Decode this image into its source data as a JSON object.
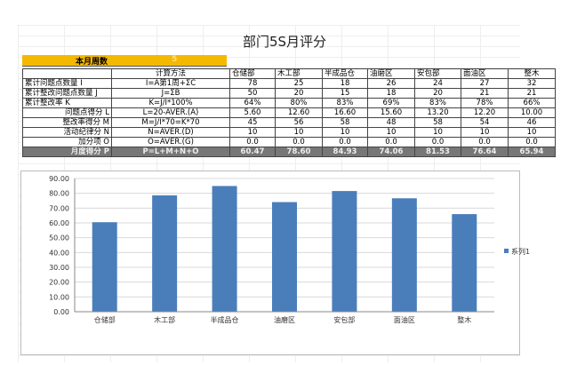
{
  "title": "部门5S月评分",
  "weeks": {
    "label": "本月周数",
    "value": "5"
  },
  "table": {
    "headers": [
      "",
      "计算方法",
      "仓储部",
      "木工部",
      "半成品仓",
      "油磨区",
      "安包部",
      "面油区",
      "整木"
    ],
    "rows": [
      {
        "label": "累计问题点数量 I",
        "method": "I=A第1周+ΣC",
        "values": [
          "78",
          "25",
          "18",
          "26",
          "24",
          "27",
          "32"
        ],
        "align": "l"
      },
      {
        "label": "累计整改问题点数量 J",
        "method": "J=ΣB",
        "values": [
          "50",
          "20",
          "15",
          "18",
          "20",
          "21",
          "21"
        ],
        "align": "l"
      },
      {
        "label": "累计整改率 K",
        "method": "K=J/I*100%",
        "values": [
          "64%",
          "80%",
          "83%",
          "69%",
          "83%",
          "78%",
          "66%"
        ],
        "align": "l"
      },
      {
        "label": "问题点得分 L",
        "method": "L=20-AVER.(A)",
        "values": [
          "5.60",
          "12.60",
          "16.60",
          "15.60",
          "13.20",
          "12.20",
          "10.00"
        ],
        "align": "r"
      },
      {
        "label": "整改率得分 M",
        "method": "M=J/I*70=K*70",
        "values": [
          "45",
          "56",
          "58",
          "48",
          "58",
          "54",
          "46"
        ],
        "align": "r"
      },
      {
        "label": "活动纪律分 N",
        "method": "N=AVER.(D)",
        "values": [
          "10",
          "10",
          "10",
          "10",
          "10",
          "10",
          "10"
        ],
        "align": "r"
      },
      {
        "label": "加分项 O",
        "method": "O=AVER.(G)",
        "values": [
          "0.0",
          "0.0",
          "0.0",
          "0.0",
          "0.0",
          "0.0",
          "0.0"
        ],
        "align": "r"
      }
    ],
    "total": {
      "label": "月度得分 P",
      "method": "P=L+M+N+O",
      "values": [
        "60.47",
        "78.60",
        "84.93",
        "74.06",
        "81.53",
        "76.64",
        "65.94"
      ]
    }
  },
  "chart_data": {
    "type": "bar",
    "categories": [
      "仓储部",
      "木工部",
      "半成品仓",
      "油磨区",
      "安包部",
      "面油区",
      "整木"
    ],
    "series": [
      {
        "name": "系列1",
        "values": [
          60.47,
          78.6,
          84.93,
          74.06,
          81.53,
          76.64,
          65.94
        ]
      }
    ],
    "ylim": [
      0,
      90
    ],
    "yticks": [
      "0.00",
      "10.00",
      "20.00",
      "30.00",
      "40.00",
      "50.00",
      "60.00",
      "70.00",
      "80.00",
      "90.00"
    ],
    "legend": "right",
    "color": "#4a7ebb"
  }
}
